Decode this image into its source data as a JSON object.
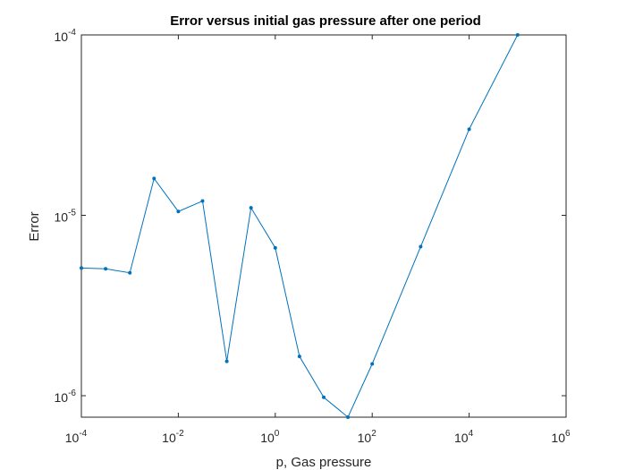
{
  "chart_data": {
    "type": "line",
    "title": "Error versus initial gas pressure after one period",
    "xlabel": "p, Gas pressure",
    "ylabel": "Error",
    "xscale": "log",
    "yscale": "log",
    "xlim": [
      0.0001,
      1000000
    ],
    "ylim": [
      7.6e-07,
      0.0001
    ],
    "grid": false,
    "x_ticks": [
      {
        "base": "10",
        "exp": "-4",
        "value": 0.0001
      },
      {
        "base": "10",
        "exp": "-2",
        "value": 0.01
      },
      {
        "base": "10",
        "exp": "0",
        "value": 1
      },
      {
        "base": "10",
        "exp": "2",
        "value": 100
      },
      {
        "base": "10",
        "exp": "4",
        "value": 10000
      },
      {
        "base": "10",
        "exp": "6",
        "value": 1000000
      }
    ],
    "y_ticks": [
      {
        "base": "10",
        "exp": "-6",
        "value": 1e-06
      },
      {
        "base": "10",
        "exp": "-5",
        "value": 1e-05
      },
      {
        "base": "10",
        "exp": "-4",
        "value": 0.0001
      }
    ],
    "series": [
      {
        "color": "#0072BD",
        "x": [
          0.0001,
          0.000316,
          0.001,
          0.00316,
          0.01,
          0.0316,
          0.1,
          0.316,
          1,
          3.16,
          10,
          31.6,
          100,
          1000,
          10000,
          100000
        ],
        "y": [
          5.1e-06,
          5.05e-06,
          4.8e-06,
          1.6e-05,
          1.05e-05,
          1.2e-05,
          1.55e-06,
          1.1e-05,
          6.6e-06,
          1.65e-06,
          9.8e-07,
          7.6e-07,
          1.5e-06,
          6.7e-06,
          3e-05,
          0.0001
        ]
      }
    ]
  }
}
